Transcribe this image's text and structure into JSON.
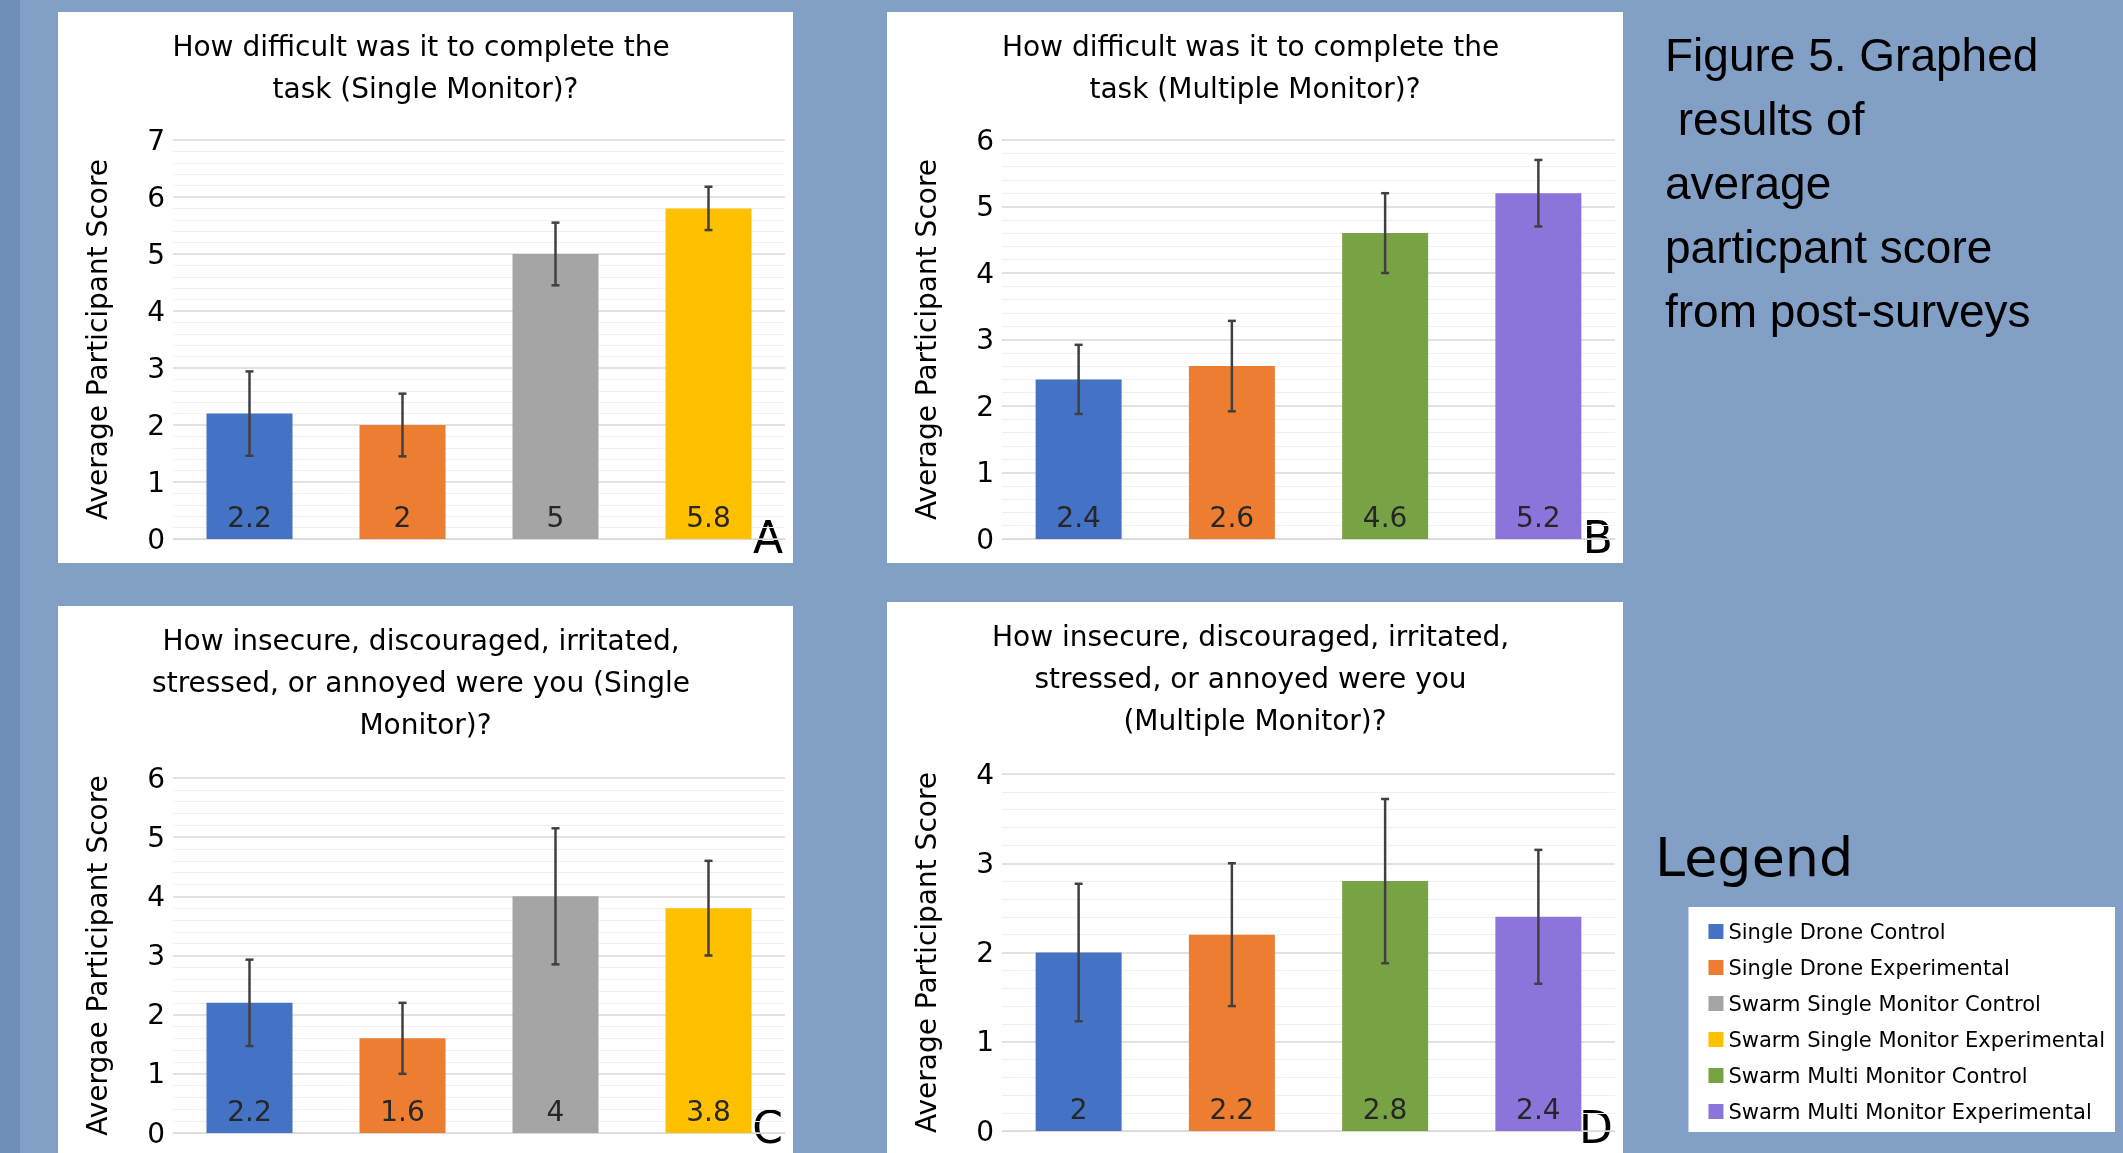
{
  "chart_data": [
    {
      "type": "bar",
      "title": "How difficult was it to complete the task (Single Monitor)?",
      "ylabel": "Average Participant Score",
      "categories": [
        null,
        null,
        null,
        null
      ],
      "values": [
        2.2,
        2,
        5,
        5.8
      ],
      "colors": [
        "#4472c4",
        "#ed7d31",
        "#a5a5a5",
        "#ffc000"
      ],
      "errors": [
        0.74,
        0.55,
        0.55,
        0.38
      ],
      "ylim": [
        0,
        7
      ],
      "yticks": [
        0,
        1,
        2,
        3,
        4,
        5,
        6,
        7
      ],
      "grid": "y",
      "data_labels": true,
      "annotations": [
        "A"
      ]
    },
    {
      "type": "bar",
      "title": "How difficult was it to complete the task (Multiple Monitor)?",
      "ylabel": "Average Participant Score",
      "categories": [
        null,
        null,
        null,
        null
      ],
      "values": [
        2.4,
        2.6,
        4.6,
        5.2
      ],
      "colors": [
        "#4472c4",
        "#ed7d31",
        "#78a345",
        "#8b75db"
      ],
      "errors": [
        0.52,
        0.68,
        0.6,
        0.5
      ],
      "ylim": [
        0,
        6
      ],
      "yticks": [
        0,
        1,
        2,
        3,
        4,
        5,
        6
      ],
      "grid": "y",
      "data_labels": true,
      "annotations": [
        "B"
      ]
    },
    {
      "type": "bar",
      "title": "How insecure, discouraged, irritated, stressed, or annoyed were you (Single Monitor)?",
      "ylabel": "Avergae Participant Score",
      "categories": [
        null,
        null,
        null,
        null
      ],
      "values": [
        2.2,
        1.6,
        4,
        3.8
      ],
      "colors": [
        "#4472c4",
        "#ed7d31",
        "#a5a5a5",
        "#ffc000"
      ],
      "errors": [
        0.73,
        0.6,
        1.15,
        0.8
      ],
      "ylim": [
        0,
        6
      ],
      "yticks": [
        0,
        1,
        2,
        3,
        4,
        5,
        6
      ],
      "grid": "y",
      "data_labels": true,
      "annotations": [
        "C"
      ]
    },
    {
      "type": "bar",
      "title": "How insecure, discouraged, irritated, stressed, or annoyed were you (Multiple Monitor)?",
      "ylabel": "Average Participant Score",
      "categories": [
        null,
        null,
        null,
        null
      ],
      "values": [
        2,
        2.2,
        2.8,
        2.4
      ],
      "colors": [
        "#4472c4",
        "#ed7d31",
        "#78a345",
        "#8b75db"
      ],
      "errors": [
        0.77,
        0.8,
        0.92,
        0.75
      ],
      "ylim": [
        0,
        4
      ],
      "yticks": [
        0,
        1,
        2,
        3,
        4
      ],
      "grid": "y",
      "data_labels": true,
      "annotations": [
        "D"
      ]
    },
    {
      "type": "other",
      "title": "Figure 5. Graphed results of average particpant score from post-surveys",
      "legend_title": "Legend",
      "legend": "right",
      "series": [
        {
          "name": "Single Drone Control",
          "color": "#4472c4"
        },
        {
          "name": "Single Drone Experimental",
          "color": "#ed7d31"
        },
        {
          "name": "Swarm Single Monitor Control",
          "color": "#a5a5a5"
        },
        {
          "name": "Swarm Single Monitor Experimental",
          "color": "#ffc000"
        },
        {
          "name": "Swarm Multi Monitor Control",
          "color": "#78a345"
        },
        {
          "name": "Swarm Multi Monitor Experimental",
          "color": "#8b75db"
        }
      ]
    }
  ]
}
